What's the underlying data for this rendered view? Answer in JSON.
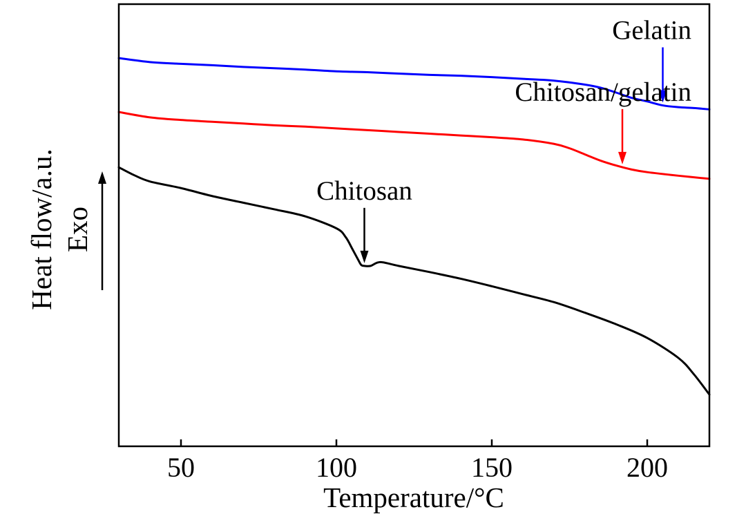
{
  "chart_data": {
    "type": "line",
    "title": "",
    "xlabel": "Temperature/°C",
    "ylabel": "Heat flow/a.u.",
    "exo_label": "Exo",
    "xlim": [
      30,
      220
    ],
    "ylim": [
      0,
      10
    ],
    "xticks": [
      50,
      100,
      150,
      200
    ],
    "yticks_shown": false,
    "grid": false,
    "legend": "none",
    "colors": {
      "Gelatin": "#0000ff",
      "Chitosan/gelatin": "#ff0000",
      "Chitosan": "#000000",
      "axis": "#000000"
    },
    "series": [
      {
        "name": "Gelatin",
        "color": "#0000ff",
        "x": [
          30,
          40,
          50,
          60,
          70,
          80,
          90,
          100,
          110,
          120,
          130,
          140,
          150,
          160,
          170,
          180,
          185,
          190,
          195,
          200,
          205,
          210,
          215,
          220
        ],
        "y": [
          8.78,
          8.69,
          8.65,
          8.62,
          8.58,
          8.55,
          8.52,
          8.48,
          8.46,
          8.43,
          8.4,
          8.38,
          8.35,
          8.31,
          8.27,
          8.18,
          8.11,
          8.0,
          7.88,
          7.8,
          7.71,
          7.67,
          7.65,
          7.62
        ]
      },
      {
        "name": "Chitosan/gelatin",
        "color": "#ff0000",
        "x": [
          30,
          40,
          50,
          60,
          70,
          80,
          90,
          100,
          110,
          120,
          130,
          140,
          150,
          160,
          170,
          175,
          180,
          185,
          190,
          195,
          200,
          210,
          220
        ],
        "y": [
          7.56,
          7.44,
          7.38,
          7.34,
          7.3,
          7.26,
          7.23,
          7.19,
          7.15,
          7.11,
          7.07,
          7.03,
          6.99,
          6.94,
          6.84,
          6.74,
          6.6,
          6.46,
          6.35,
          6.26,
          6.2,
          6.12,
          6.05
        ]
      },
      {
        "name": "Chitosan",
        "color": "#000000",
        "x": [
          30,
          35,
          40,
          50,
          60,
          70,
          80,
          90,
          100,
          103,
          105,
          107,
          108,
          109,
          111,
          113,
          115,
          120,
          130,
          140,
          150,
          160,
          170,
          180,
          190,
          200,
          210,
          215,
          220
        ],
        "y": [
          6.31,
          6.13,
          5.99,
          5.84,
          5.66,
          5.51,
          5.36,
          5.2,
          4.93,
          4.73,
          4.48,
          4.22,
          4.1,
          4.08,
          4.08,
          4.15,
          4.16,
          4.08,
          3.94,
          3.79,
          3.62,
          3.44,
          3.26,
          3.02,
          2.76,
          2.45,
          2.0,
          1.63,
          1.17
        ]
      }
    ],
    "annotations": [
      {
        "text": "Gelatin",
        "series": "Gelatin",
        "arrow_x": 205
      },
      {
        "text": "Chitosan/gelatin",
        "series": "Chitosan/gelatin",
        "arrow_x": 192
      },
      {
        "text": "Chitosan",
        "series": "Chitosan",
        "arrow_x": 109
      }
    ]
  }
}
